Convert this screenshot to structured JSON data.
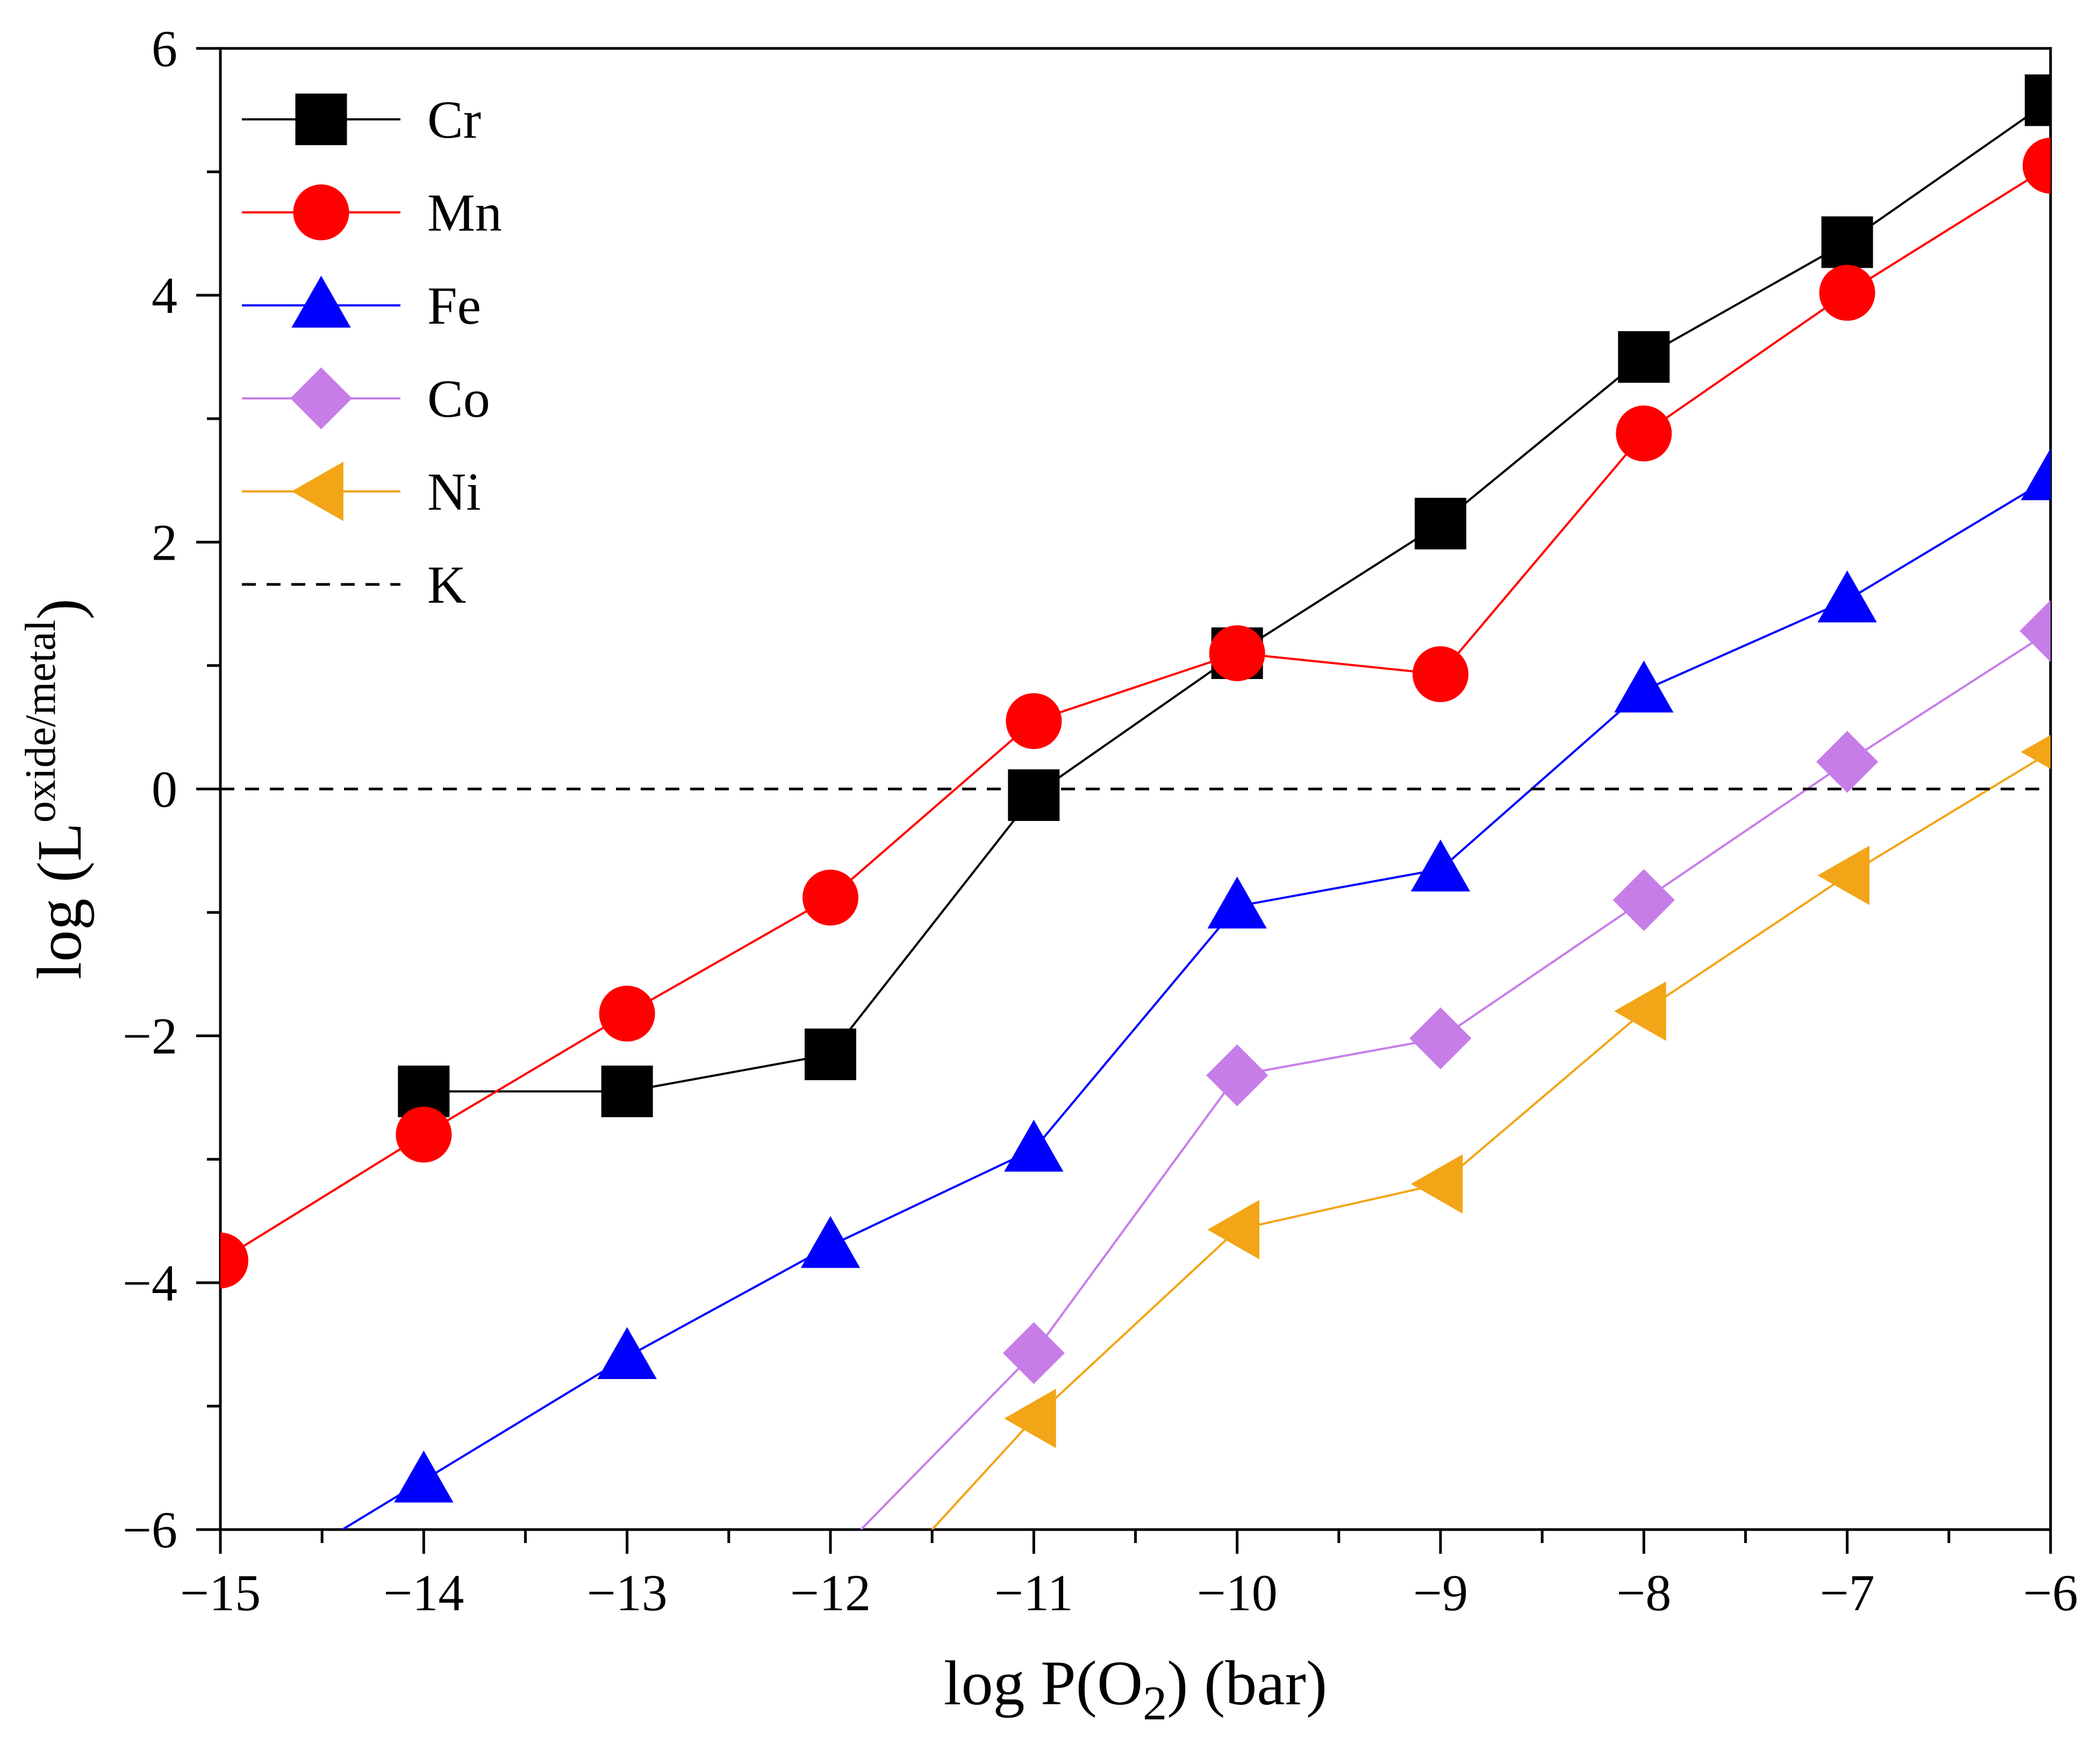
{
  "chart_data": {
    "type": "line",
    "title": "",
    "xlabel": {
      "prefix": "log P(O",
      "sub": "2",
      "suffix": ") (bar)"
    },
    "ylabel": {
      "prefix": "log (L",
      "sup": "oxide/metal",
      "suffix": ")"
    },
    "xlim": [
      -15,
      -6
    ],
    "ylim": [
      -6,
      6
    ],
    "xticks": [
      -15,
      -14,
      -13,
      -12,
      -11,
      -10,
      -9,
      -8,
      -7,
      -6
    ],
    "xtick_labels": [
      "−15",
      "−14",
      "−13",
      "−12",
      "−11",
      "−10",
      "−9",
      "−8",
      "−7",
      "−6"
    ],
    "yticks": [
      -6,
      -4,
      -2,
      0,
      2,
      4,
      6
    ],
    "ytick_labels": [
      "−6",
      "−4",
      "−2",
      "0",
      "2",
      "4",
      "6"
    ],
    "grid": false,
    "legend_position": "top-left",
    "series": [
      {
        "name": "Cr",
        "color": "#000000",
        "marker": "square",
        "x": [
          -14,
          -13,
          -12,
          -11,
          -10,
          -9,
          -8,
          -7,
          -6
        ],
        "y": [
          -2.45,
          -2.45,
          -2.15,
          -0.05,
          1.1,
          2.15,
          3.5,
          4.43,
          5.58
        ]
      },
      {
        "name": "Mn",
        "color": "#ff0000",
        "marker": "circle",
        "x": [
          -15,
          -14,
          -13,
          -12,
          -11,
          -10,
          -9,
          -8,
          -7,
          -6
        ],
        "y": [
          -3.82,
          -2.8,
          -1.82,
          -0.88,
          0.55,
          1.1,
          0.93,
          2.88,
          4.02,
          5.05
        ]
      },
      {
        "name": "Fe",
        "color": "#0000ff",
        "marker": "triangle-up",
        "x": [
          -14.4,
          -14,
          -13,
          -12,
          -11,
          -10,
          -9,
          -8,
          -7,
          -6
        ],
        "y": [
          -6.0,
          -5.6,
          -4.6,
          -3.7,
          -2.92,
          -0.95,
          -0.65,
          0.8,
          1.53,
          2.52
        ],
        "marker_skip_first": true
      },
      {
        "name": "Co",
        "color": "#c77de8",
        "marker": "diamond",
        "x": [
          -11.85,
          -11,
          -10,
          -9,
          -8,
          -7,
          -6
        ],
        "y": [
          -6.0,
          -4.57,
          -2.32,
          -2.02,
          -0.9,
          0.22,
          1.28
        ],
        "marker_skip_first": true
      },
      {
        "name": "Ni",
        "color": "#f2a516",
        "marker": "triangle-left",
        "x": [
          -11.5,
          -11,
          -10,
          -9,
          -8,
          -7,
          -6
        ],
        "y": [
          -6.0,
          -5.1,
          -3.57,
          -3.2,
          -1.8,
          -0.7,
          0.3
        ],
        "marker_skip_first": true
      },
      {
        "name": "K",
        "color": "#000000",
        "marker": "none",
        "dashed": true,
        "x": [
          -15,
          -6
        ],
        "y": [
          0,
          0
        ]
      }
    ]
  }
}
